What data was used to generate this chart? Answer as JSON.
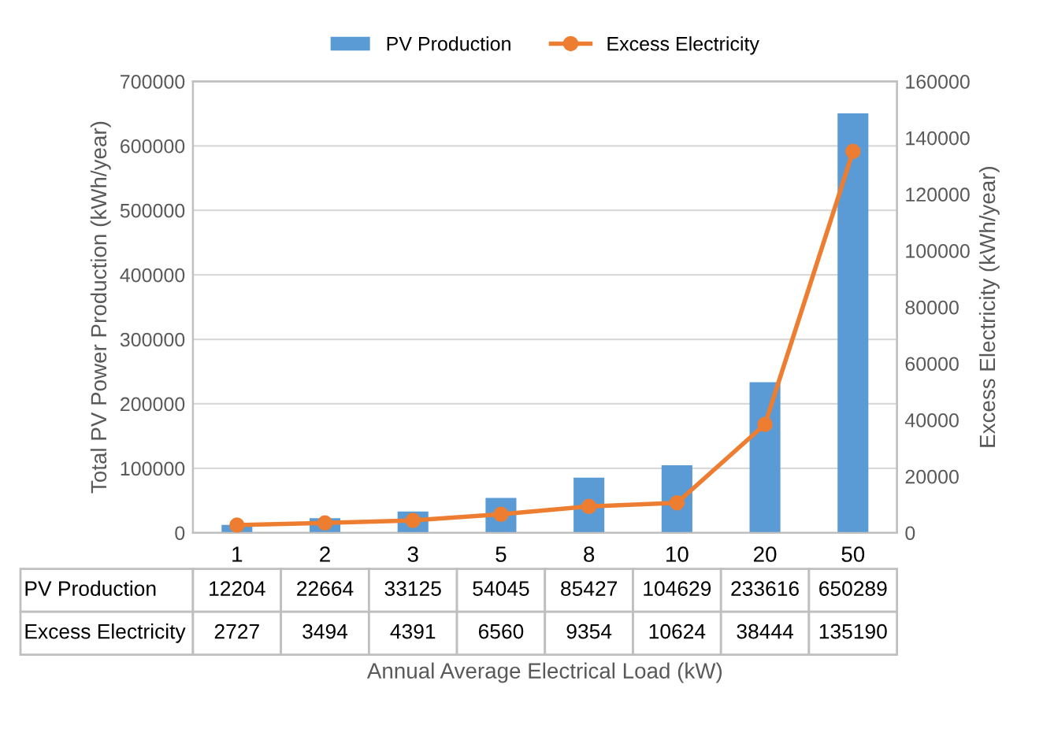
{
  "chart_data": {
    "type": "bar",
    "xlabel": "Annual Average Electrical Load (kW)",
    "ylabel": "Total PV Power Production (kWh/year)",
    "y2label": "Excess Electricity (kWh/year)",
    "categories": [
      "1",
      "2",
      "3",
      "5",
      "8",
      "10",
      "20",
      "50"
    ],
    "series": [
      {
        "name": "PV Production",
        "color": "#5b9bd5",
        "values": [
          12204,
          22664,
          33125,
          54045,
          85427,
          104629,
          233616,
          650289
        ]
      },
      {
        "name": "Excess Electricity",
        "type": "line",
        "axis": "y2",
        "color": "#ed7d31",
        "marker": "circle",
        "values": [
          2727,
          3494,
          4391,
          6560,
          9354,
          10624,
          38444,
          135190
        ]
      }
    ],
    "ylim": [
      0,
      700000
    ],
    "yticks": [
      0,
      100000,
      200000,
      300000,
      400000,
      500000,
      600000,
      700000
    ],
    "y2lim": [
      0,
      160000
    ],
    "y2ticks": [
      0,
      20000,
      40000,
      60000,
      80000,
      100000,
      120000,
      140000,
      160000
    ],
    "grid": "y",
    "legend": "top",
    "data_labels": true
  }
}
